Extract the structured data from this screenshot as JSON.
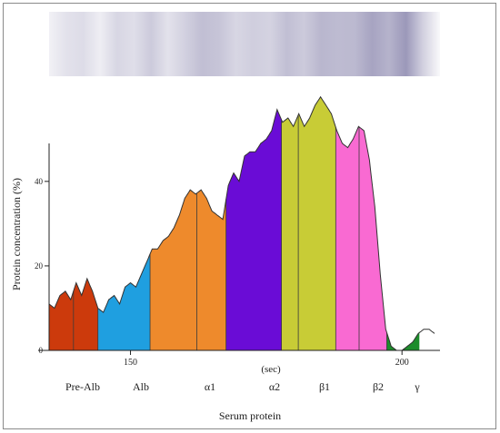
{
  "chart_data": {
    "type": "area",
    "xlabel": "Serum protein",
    "ylabel": "Protein concentration (%)",
    "x_unit_label": "(sec)",
    "x_ticks": [
      150,
      200
    ],
    "y_ticks": [
      0,
      20,
      40
    ],
    "xlim": [
      133,
      207
    ],
    "ylim": [
      0,
      55
    ],
    "grid": false,
    "gel_strip": {
      "color": "#8e8ab0",
      "band_intensity": [
        0.12,
        0.25,
        0.3,
        0.15,
        0.35,
        0.28,
        0.45,
        0.25,
        0.4,
        0.55,
        0.5,
        0.35,
        0.42,
        0.38,
        0.55,
        0.45,
        0.62,
        0.58,
        0.6,
        0.78,
        0.65,
        0.88,
        0.4,
        0.05
      ]
    },
    "curve": {
      "x": [
        135,
        136,
        137,
        138,
        139,
        140,
        141,
        142,
        143,
        144,
        145,
        146,
        147,
        148,
        149,
        150,
        151,
        152,
        153,
        154,
        155,
        156,
        157,
        158,
        159,
        160,
        161,
        162,
        163,
        164,
        165,
        166,
        167,
        168,
        169,
        170,
        171,
        172,
        173,
        174,
        175,
        176,
        177,
        178,
        179,
        180,
        181,
        182,
        183,
        184,
        185,
        186,
        187,
        188,
        189,
        190,
        191,
        192,
        193,
        194,
        195,
        196,
        197,
        198,
        199,
        200,
        201,
        202,
        203,
        204,
        205,
        206
      ],
      "y": [
        11,
        10,
        13,
        14,
        12,
        16,
        13,
        17,
        14,
        10,
        9,
        12,
        13,
        11,
        15,
        16,
        15,
        18,
        21,
        24,
        24,
        26,
        27,
        29,
        32,
        36,
        38,
        37,
        38,
        36,
        33,
        32,
        31,
        39,
        42,
        40,
        46,
        47,
        47,
        49,
        50,
        52,
        57,
        54,
        55,
        53,
        56,
        53,
        55,
        58,
        60,
        58,
        56,
        52,
        49,
        48,
        50,
        53,
        52,
        45,
        34,
        18,
        5,
        1,
        0,
        0,
        1,
        2,
        4,
        5,
        5,
        4
      ]
    },
    "series": [
      {
        "name": "Pre-Alb",
        "x_range": [
          135,
          144
        ],
        "color": "#cc3a0c"
      },
      {
        "name": "Alb",
        "x_range": [
          144,
          153.6
        ],
        "color": "#1f9fe0"
      },
      {
        "name": "α1",
        "x_range": [
          153.6,
          167.6
        ],
        "color": "#ee8a2c"
      },
      {
        "name": "α2",
        "x_range": [
          167.6,
          177.8
        ],
        "color": "#6a0cd6"
      },
      {
        "name": "β1",
        "x_range": [
          177.8,
          187.8
        ],
        "color": "#c8cc36"
      },
      {
        "name": "β2",
        "x_range": [
          187.8,
          197.2
        ],
        "color": "#f96ad2"
      },
      {
        "name": "γ",
        "x_range": [
          197.2,
          203.2
        ],
        "color": "#1d8c2c"
      }
    ],
    "dividers": [
      139.5,
      162.2,
      180.9,
      192.1,
      200.4
    ]
  }
}
